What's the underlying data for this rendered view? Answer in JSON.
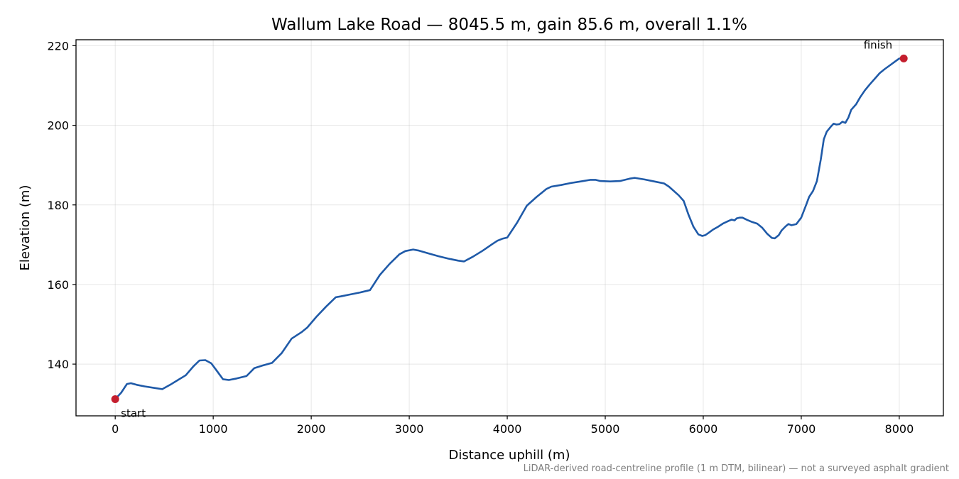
{
  "chart_data": {
    "type": "line",
    "title": "Wallum Lake Road — 8045.5 m, gain 85.6 m, overall 1.1%",
    "xlabel": "Distance uphill (m)",
    "ylabel": "Elevation (m)",
    "xlim": [
      -400,
      8450
    ],
    "ylim": [
      127,
      221.5
    ],
    "xticks": [
      0,
      1000,
      2000,
      3000,
      4000,
      5000,
      6000,
      7000,
      8000
    ],
    "yticks": [
      140,
      160,
      180,
      200,
      220
    ],
    "grid": true,
    "line_color": "#1f5aa8",
    "marker_color": "#c41e2e",
    "series": [
      {
        "x": [
          0,
          60,
          120,
          160,
          220,
          300,
          400,
          480,
          560,
          640,
          720,
          800,
          860,
          920,
          980,
          1040,
          1100,
          1160,
          1240,
          1340,
          1420,
          1500,
          1600,
          1700,
          1800,
          1900,
          1960,
          2050,
          2150,
          2250,
          2300,
          2400,
          2500,
          2600,
          2700,
          2800,
          2900,
          2960,
          3040,
          3100,
          3200,
          3300,
          3400,
          3500,
          3560,
          3650,
          3750,
          3850,
          3900,
          3950,
          4000,
          4100,
          4200,
          4300,
          4400,
          4450,
          4550,
          4650,
          4750,
          4850,
          4900,
          4950,
          5050,
          5150,
          5250,
          5300,
          5400,
          5500,
          5600,
          5650,
          5750,
          5800,
          5850,
          5900,
          5950,
          5990,
          6020,
          6050,
          6100,
          6150,
          6200,
          6260,
          6290,
          6320,
          6340,
          6370,
          6400,
          6450,
          6500,
          6550,
          6600,
          6650,
          6700,
          6730,
          6770,
          6800,
          6840,
          6870,
          6900,
          6950,
          7000,
          7050,
          7080,
          7120,
          7160,
          7200,
          7230,
          7260,
          7300,
          7330,
          7360,
          7390,
          7420,
          7450,
          7480,
          7510,
          7560,
          7600,
          7650,
          7700,
          7750,
          7800,
          7850,
          7900,
          7950,
          8000,
          8045.5
        ],
        "y": [
          131.2,
          132.8,
          135.0,
          135.2,
          134.8,
          134.4,
          134.0,
          133.7,
          134.8,
          136.0,
          137.2,
          139.5,
          140.9,
          141.0,
          140.2,
          138.2,
          136.2,
          136.0,
          136.4,
          137.0,
          139.0,
          139.6,
          140.3,
          142.8,
          146.4,
          148.0,
          149.2,
          151.8,
          154.4,
          156.8,
          157.0,
          157.5,
          158.0,
          158.6,
          162.4,
          165.2,
          167.6,
          168.4,
          168.8,
          168.5,
          167.8,
          167.1,
          166.5,
          166.0,
          165.8,
          167.0,
          168.5,
          170.2,
          171.0,
          171.5,
          171.8,
          175.5,
          179.8,
          182.0,
          184.0,
          184.6,
          185.0,
          185.5,
          185.9,
          186.3,
          186.3,
          186.0,
          185.9,
          186.0,
          186.6,
          186.8,
          186.4,
          185.9,
          185.4,
          184.6,
          182.4,
          181.0,
          177.5,
          174.5,
          172.6,
          172.2,
          172.4,
          172.9,
          173.8,
          174.5,
          175.3,
          176.0,
          176.3,
          176.1,
          176.6,
          176.8,
          176.8,
          176.2,
          175.7,
          175.3,
          174.3,
          172.8,
          171.7,
          171.6,
          172.4,
          173.6,
          174.6,
          175.2,
          174.9,
          175.2,
          176.8,
          180.0,
          182.0,
          183.5,
          186.0,
          191.5,
          196.5,
          198.4,
          199.6,
          200.4,
          200.2,
          200.3,
          200.9,
          200.6,
          201.9,
          203.9,
          205.3,
          207.0,
          208.8,
          210.3,
          211.7,
          213.1,
          214.1,
          215.0,
          215.9,
          216.8,
          216.8
        ]
      }
    ],
    "markers": [
      {
        "label": "start",
        "x": 0,
        "y": 131.2
      },
      {
        "label": "finish",
        "x": 8045.5,
        "y": 216.8
      }
    ]
  },
  "footnote": "LiDAR-derived road-centreline profile (1 m DTM, bilinear) — not a surveyed asphalt gradient"
}
